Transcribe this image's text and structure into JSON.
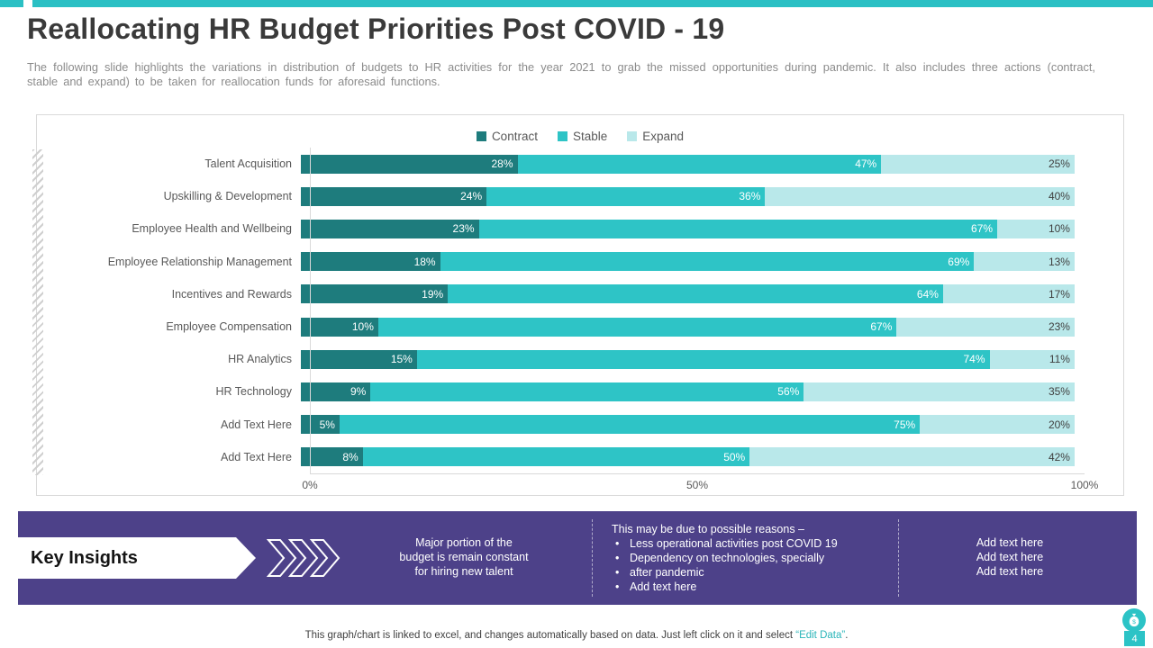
{
  "accent": {
    "teal": "#2bc0c4",
    "purple": "#4d4189"
  },
  "slide": {
    "title": "Reallocating HR Budget Priorities Post COVID - 19",
    "subtitle": "The following slide highlights the variations in distribution of budgets to HR activities for the year 2021 to grab the missed opportunities during pandemic. It also includes three actions (contract, stable and expand) to be taken for reallocation funds for aforesaid functions.",
    "page_number": "4"
  },
  "chart_data": {
    "type": "bar",
    "orientation": "horizontal",
    "stacked": true,
    "unit": "%",
    "xlim": [
      0,
      100
    ],
    "x_ticks": [
      "0%",
      "50%",
      "100%"
    ],
    "legend_position": "top",
    "categories": [
      "Talent Acquisition",
      "Upskilling & Development",
      "Employee Health and Wellbeing",
      "Employee Relationship Management",
      "Incentives and Rewards",
      "Employee Compensation",
      "HR Analytics",
      "HR Technology",
      "Add Text Here",
      "Add Text Here"
    ],
    "series": [
      {
        "name": "Contract",
        "color": "#1e7c7d",
        "label_color": "#ffffff",
        "values": [
          28,
          24,
          23,
          18,
          19,
          10,
          15,
          9,
          5,
          8
        ]
      },
      {
        "name": "Stable",
        "color": "#2ec4c6",
        "label_color": "#ffffff",
        "values": [
          47,
          36,
          67,
          69,
          64,
          67,
          74,
          56,
          75,
          50
        ]
      },
      {
        "name": "Expand",
        "color": "#b9e8ea",
        "label_color": "#3f3f3f",
        "values": [
          25,
          40,
          10,
          13,
          17,
          23,
          11,
          35,
          20,
          42
        ]
      }
    ]
  },
  "key_insights": {
    "label": "Key Insights",
    "column1_lines": [
      "Major portion of the",
      "budget is remain constant",
      "for hiring new talent"
    ],
    "column2_header": "This may be due to possible reasons –",
    "column2_bullets": [
      "Less operational activities post COVID 19",
      "Dependency on technologies, specially",
      "after pandemic",
      "Add text here"
    ],
    "column3_lines": [
      "Add text here",
      "Add text here",
      "Add text here"
    ]
  },
  "footer": {
    "part1": "This graph/chart is linked to excel, and changes automatically based on data. Just left click on it and select ",
    "edit_data": "“Edit Data”",
    "part2": "."
  }
}
